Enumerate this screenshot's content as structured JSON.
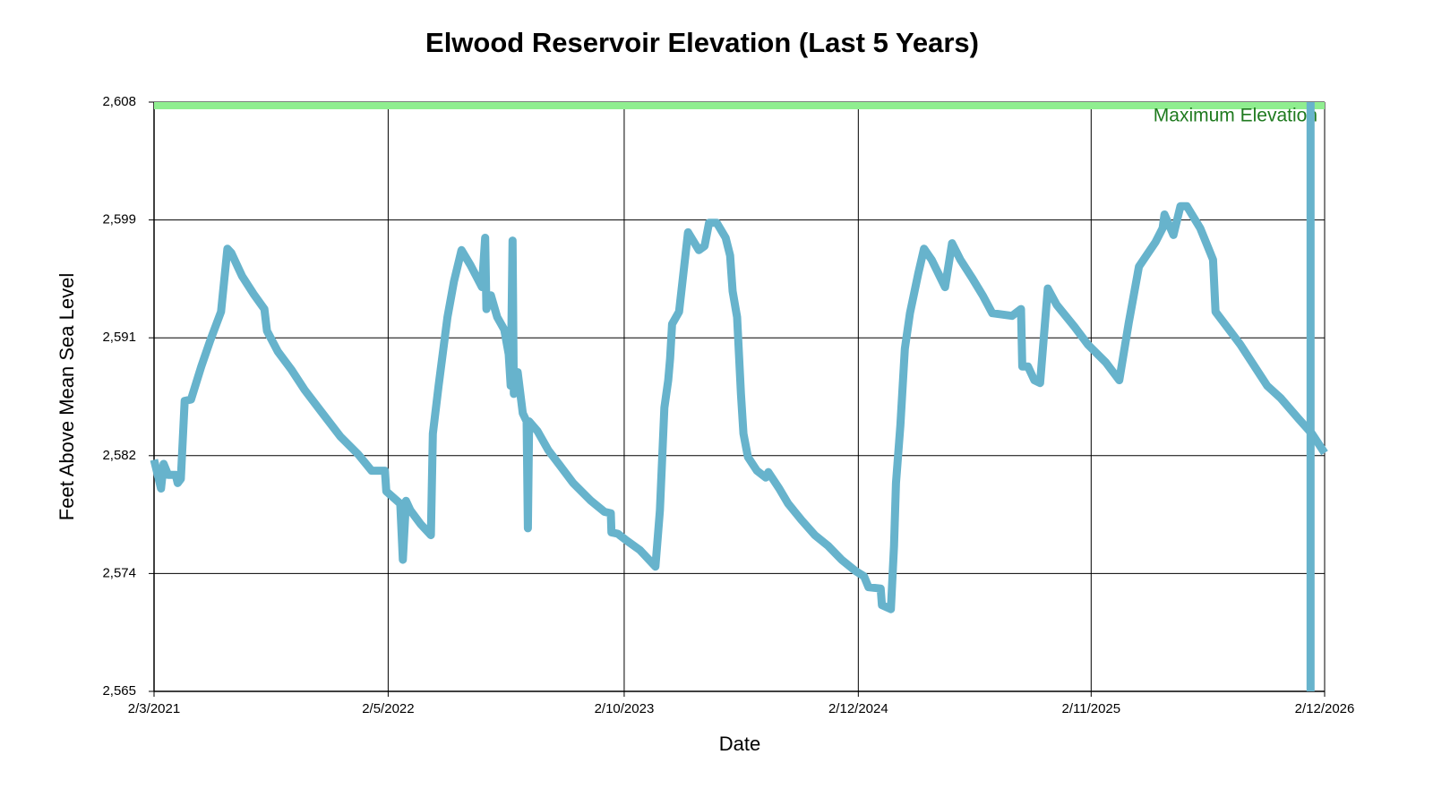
{
  "chart_data": {
    "type": "line",
    "title": "Elwood Reservoir Elevation (Last 5 Years)",
    "x_label": "Date",
    "y_label": "Feet Above Mean Sea Level",
    "xlim": [
      "2/3/2021",
      "2/12/2026"
    ],
    "xticks": [
      "2/3/2021",
      "2/5/2022",
      "2/10/2023",
      "2/12/2024",
      "2/11/2025",
      "2/12/2026"
    ],
    "ylim": [
      2565,
      2608
    ],
    "yticks": [
      {
        "value": 2565,
        "label": "2,565"
      },
      {
        "value": 2573.6,
        "label": "2,574"
      },
      {
        "value": 2582.2,
        "label": "2,582"
      },
      {
        "value": 2590.8,
        "label": "2,591"
      },
      {
        "value": 2599.4,
        "label": "2,599"
      },
      {
        "value": 2608,
        "label": "2,608"
      }
    ],
    "grid": true,
    "max_line": {
      "value": 2608,
      "label": "Maximum Elevation",
      "color": "#90ee90",
      "label_color": "#1f7a1f"
    },
    "series": [
      {
        "color": "#67b3cc",
        "x": [
          "2/3/2021",
          "2/14/2021",
          "2/18/2021",
          "2/25/2021",
          "3/9/2021",
          "3/12/2021",
          "3/17/2021",
          "3/23/2021",
          "4/2/2021",
          "4/18/2021",
          "5/2/2021",
          "5/19/2021",
          "5/29/2021",
          "6/4/2021",
          "6/21/2021",
          "7/9/2021",
          "7/26/2021",
          "7/30/2021",
          "8/16/2021",
          "9/6/2021",
          "9/27/2021",
          "10/25/2021",
          "11/22/2021",
          "12/20/2021",
          "1/10/2022",
          "1/31/2022",
          "2/2/2022",
          "2/24/2022",
          "2/28/2022",
          "3/5/2022",
          "3/12/2022",
          "3/28/2022",
          "4/13/2022",
          "4/16/2022",
          "4/25/2022",
          "5/9/2022",
          "5/19/2022",
          "5/31/2022",
          "6/14/2022",
          "7/2/2022",
          "7/7/2022",
          "7/9/2022",
          "7/16/2022",
          "7/26/2022",
          "8/6/2022",
          "8/13/2022",
          "8/16/2022",
          "8/19/2022",
          "8/21/2022",
          "8/27/2022",
          "9/4/2022",
          "9/10/2022",
          "9/12/2022",
          "9/14/2022",
          "9/27/2022",
          "10/14/2022",
          "11/1/2022",
          "11/22/2022",
          "12/20/2022",
          "1/10/2023",
          "1/20/2023",
          "1/21/2023",
          "1/31/2023",
          "2/14/2023",
          "3/7/2023",
          "3/31/2023",
          "4/7/2023",
          "4/14/2023",
          "4/20/2023",
          "4/23/2023",
          "4/26/2023",
          "5/7/2023",
          "5/21/2023",
          "6/7/2023",
          "6/16/2023",
          "6/23/2023",
          "7/5/2023",
          "7/19/2023",
          "7/26/2023",
          "7/30/2023",
          "8/6/2023",
          "8/12/2023",
          "8/16/2023",
          "8/23/2023",
          "9/6/2023",
          "9/20/2023",
          "9/24/2023",
          "10/11/2023",
          "10/25/2023",
          "11/15/2023",
          "12/6/2023",
          "12/27/2023",
          "1/17/2024",
          "2/7/2024",
          "2/21/2024",
          "2/28/2024",
          "3/18/2024",
          "3/20/2024",
          "4/3/2024",
          "4/8/2024",
          "4/11/2024",
          "4/18/2024",
          "4/25/2024",
          "5/3/2024",
          "5/16/2024",
          "5/25/2024",
          "6/6/2024",
          "6/27/2024",
          "7/8/2024",
          "7/21/2024",
          "8/8/2024",
          "8/25/2024",
          "9/9/2024",
          "10/10/2024",
          "10/24/2024",
          "10/26/2024",
          "11/4/2024",
          "11/14/2024",
          "11/23/2024",
          "11/25/2024",
          "12/5/2024",
          "12/19/2024",
          "1/16/2025",
          "2/6/2025",
          "3/6/2025",
          "3/27/2025",
          "4/11/2025",
          "4/27/2025",
          "5/23/2025",
          "6/3/2025",
          "6/6/2025",
          "6/20/2025",
          "7/1/2025",
          "7/11/2025",
          "8/1/2025",
          "8/15/2025",
          "8/21/2025",
          "8/25/2025",
          "9/12/2025",
          "10/3/2025",
          "10/24/2025",
          "11/14/2025",
          "12/5/2025",
          "1/2/2026",
          "1/23/2026",
          "2/12/2026"
        ],
        "values": [
          2581.9,
          2579.8,
          2581.6,
          2580.8,
          2580.8,
          2580.2,
          2580.5,
          2586.2,
          2586.3,
          2588.7,
          2590.6,
          2592.7,
          2597.3,
          2597.0,
          2595.3,
          2594.0,
          2592.9,
          2591.3,
          2589.8,
          2588.5,
          2587.0,
          2585.3,
          2583.6,
          2582.3,
          2581.1,
          2581.1,
          2579.6,
          2578.7,
          2574.6,
          2578.9,
          2578.2,
          2577.2,
          2576.4,
          2583.8,
          2587.3,
          2592.3,
          2594.9,
          2597.2,
          2596.1,
          2594.5,
          2598.1,
          2592.9,
          2593.9,
          2592.3,
          2591.4,
          2589.6,
          2587.3,
          2597.9,
          2586.7,
          2588.3,
          2585.3,
          2584.7,
          2576.9,
          2584.7,
          2584.0,
          2582.6,
          2581.5,
          2580.2,
          2578.9,
          2578.1,
          2578.0,
          2576.6,
          2576.5,
          2576.0,
          2575.3,
          2574.1,
          2578.2,
          2585.7,
          2587.7,
          2589.3,
          2591.8,
          2592.7,
          2598.5,
          2597.2,
          2597.5,
          2599.2,
          2599.2,
          2598.1,
          2596.8,
          2594.2,
          2592.3,
          2586.7,
          2583.8,
          2582.1,
          2581.1,
          2580.6,
          2581.0,
          2579.8,
          2578.7,
          2577.5,
          2576.4,
          2575.6,
          2574.6,
          2573.8,
          2573.4,
          2572.6,
          2572.5,
          2571.3,
          2571.0,
          2575.6,
          2580.2,
          2584.4,
          2590.0,
          2592.6,
          2595.5,
          2597.3,
          2596.5,
          2594.5,
          2597.7,
          2596.5,
          2595.2,
          2593.9,
          2592.6,
          2592.4,
          2592.9,
          2588.7,
          2588.7,
          2587.7,
          2587.5,
          2588.7,
          2594.4,
          2593.2,
          2591.6,
          2590.3,
          2589.0,
          2587.7,
          2591.9,
          2596.0,
          2597.8,
          2598.8,
          2599.8,
          2598.3,
          2600.4,
          2600.4,
          2598.8,
          2597.2,
          2596.5,
          2592.7,
          2591.6,
          2590.3,
          2588.8,
          2587.3,
          2586.4,
          2584.9,
          2583.8,
          2582.4
        ]
      },
      {
        "color": "#67b3cc",
        "x": [
          "1/21/2026",
          "1/21/2026"
        ],
        "values": [
          2608,
          2565
        ]
      }
    ]
  }
}
